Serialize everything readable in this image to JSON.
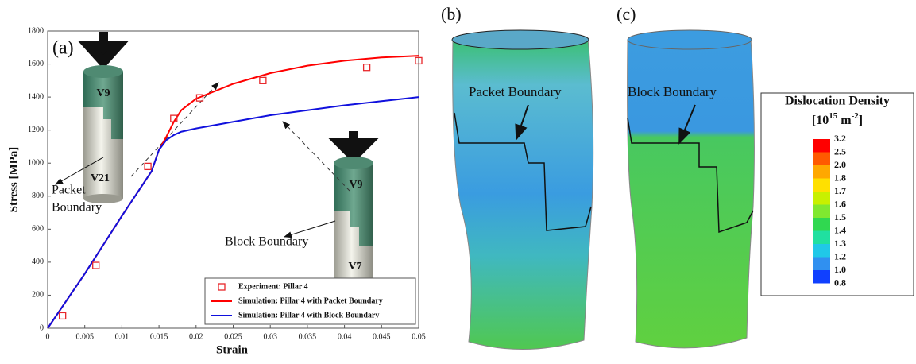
{
  "chart_data": {
    "type": "line",
    "panel_label": "(a)",
    "xlabel": "Strain",
    "ylabel": "Stress [MPa]",
    "xlim": [
      0,
      0.05
    ],
    "xticks": [
      0,
      0.005,
      0.01,
      0.015,
      0.02,
      0.025,
      0.03,
      0.035,
      0.04,
      0.045,
      0.05
    ],
    "ylim": [
      0,
      1800
    ],
    "yticks": [
      0,
      200,
      400,
      600,
      800,
      1000,
      1200,
      1400,
      1600,
      1800
    ],
    "legend": "lower right",
    "series": [
      {
        "name": "Experiment: Pillar 4",
        "style": "markers",
        "color": "#e8262a",
        "x": [
          0.002,
          0.0065,
          0.0135,
          0.017,
          0.0205,
          0.029,
          0.043,
          0.05
        ],
        "values": [
          75,
          380,
          980,
          1270,
          1395,
          1500,
          1580,
          1620
        ]
      },
      {
        "name": "Simulation: Pillar 4 with Packet Boundary",
        "style": "line",
        "color": "#ff0000",
        "x": [
          0,
          0.005,
          0.01,
          0.014,
          0.015,
          0.016,
          0.017,
          0.018,
          0.02,
          0.025,
          0.03,
          0.035,
          0.04,
          0.045,
          0.05
        ],
        "values": [
          0,
          330,
          680,
          950,
          1080,
          1160,
          1250,
          1320,
          1390,
          1480,
          1545,
          1590,
          1620,
          1640,
          1650
        ]
      },
      {
        "name": "Simulation: Pillar 4 with Block Boundary",
        "style": "line",
        "color": "#1010dd",
        "x": [
          0,
          0.005,
          0.01,
          0.014,
          0.015,
          0.016,
          0.017,
          0.018,
          0.02,
          0.025,
          0.03,
          0.035,
          0.04,
          0.045,
          0.05
        ],
        "values": [
          0,
          330,
          680,
          950,
          1080,
          1140,
          1170,
          1190,
          1210,
          1250,
          1290,
          1320,
          1350,
          1375,
          1400
        ]
      }
    ],
    "annotations": {
      "top_grain_1": "V9",
      "bottom_grain_1": "V21",
      "boundary_1": [
        "Packet",
        "Boundary"
      ],
      "top_grain_2": "V9",
      "bottom_grain_2": "V7",
      "boundary_2": "Block Boundary"
    }
  },
  "panels": [
    {
      "label": "(b)",
      "annotation": "Packet Boundary"
    },
    {
      "label": "(c)",
      "annotation": "Block Boundary"
    }
  ],
  "colorbar": {
    "title": "Dislocation Density",
    "unit_parts": [
      "[10",
      "15",
      " m",
      "-2",
      "]"
    ],
    "labels": [
      "3.2",
      "2.5",
      "2.0",
      "1.8",
      "1.7",
      "1.6",
      "1.5",
      "1.4",
      "1.3",
      "1.2",
      "1.0",
      "0.8"
    ],
    "colors": [
      "#ff0000",
      "#ff5a00",
      "#ffa800",
      "#ffe000",
      "#c8f000",
      "#80e830",
      "#30d850",
      "#20e0a0",
      "#20c8e8",
      "#3090f0",
      "#1040ff"
    ]
  }
}
